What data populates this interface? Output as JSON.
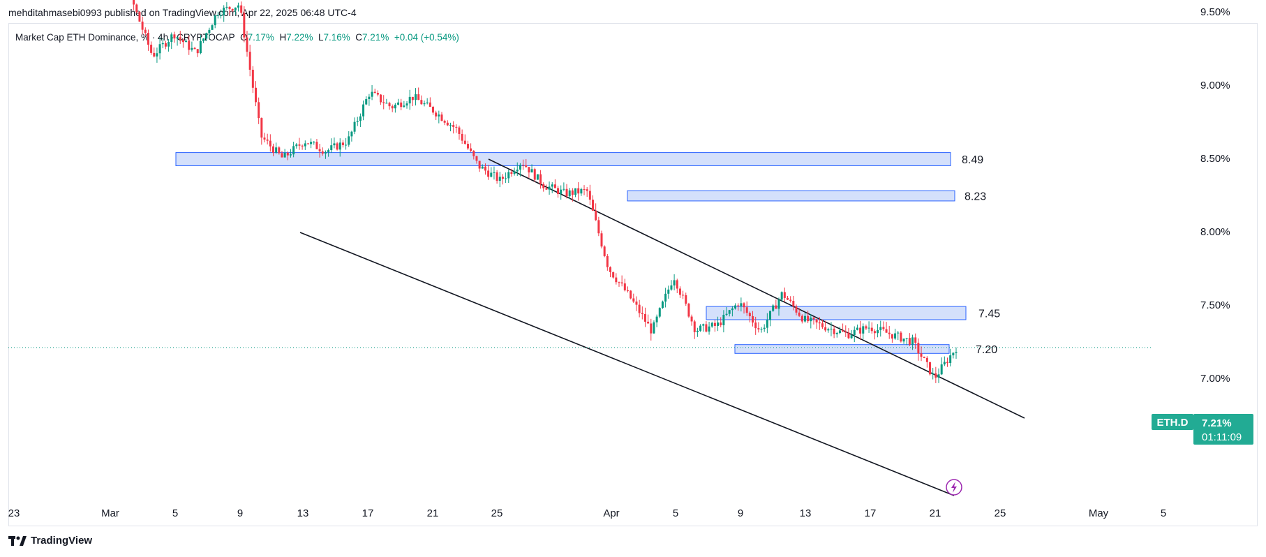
{
  "header": {
    "published": "mehditahmasebi0993 published on TradingView.com, Apr 22, 2025 06:48 UTC-4"
  },
  "legend": {
    "title": "Market Cap ETH Dominance, % · 4h · CRYPTOCAP",
    "o_label": "O",
    "o": "7.17%",
    "h_label": "H",
    "h": "7.22%",
    "l_label": "L",
    "l": "7.16%",
    "c_label": "C",
    "c": "7.21%",
    "change": "+0.04 (+0.54%)"
  },
  "footer": {
    "brand": "TradingView"
  },
  "badge": {
    "symbol": "ETH.D",
    "price": "7.21%",
    "countdown": "01:11:09"
  },
  "colors": {
    "up": "#089981",
    "down": "#f23645",
    "zone_fill": "#d4e0fb",
    "zone_border": "#2962ff",
    "line": "#131722",
    "badge": "#22ab94"
  },
  "chart_data": {
    "type": "candlestick",
    "title": "Market Cap ETH Dominance, % · 4h · CRYPTOCAP",
    "ylim": [
      6.75,
      9.98
    ],
    "y_ticks": [
      "9.50%",
      "9.00%",
      "8.50%",
      "8.00%",
      "7.50%",
      "7.00%"
    ],
    "x_ticks": [
      "23",
      "Mar",
      "5",
      "9",
      "13",
      "17",
      "21",
      "25",
      "Apr",
      "5",
      "9",
      "13",
      "17",
      "21",
      "25",
      "May",
      "5"
    ],
    "last_price": 7.21,
    "zones": [
      {
        "label": "8.49",
        "top": 8.54,
        "bottom": 8.45
      },
      {
        "label": "8.23",
        "top": 8.28,
        "bottom": 8.21
      },
      {
        "label": "7.45",
        "top": 7.49,
        "bottom": 7.4
      },
      {
        "label": "7.20",
        "top": 7.23,
        "bottom": 7.17
      }
    ],
    "price_path": [
      9.98,
      9.85,
      9.6,
      9.2,
      9.35,
      9.22,
      9.5,
      9.55,
      8.65,
      8.5,
      8.62,
      8.55,
      8.62,
      8.95,
      8.85,
      8.92,
      8.82,
      8.7,
      8.45,
      8.35,
      8.48,
      8.32,
      8.26,
      8.28,
      7.75,
      7.55,
      7.32,
      7.7,
      7.33,
      7.36,
      7.52,
      7.32,
      7.58,
      7.4,
      7.35,
      7.3,
      7.35,
      7.3,
      7.25,
      7.0,
      7.21
    ]
  }
}
